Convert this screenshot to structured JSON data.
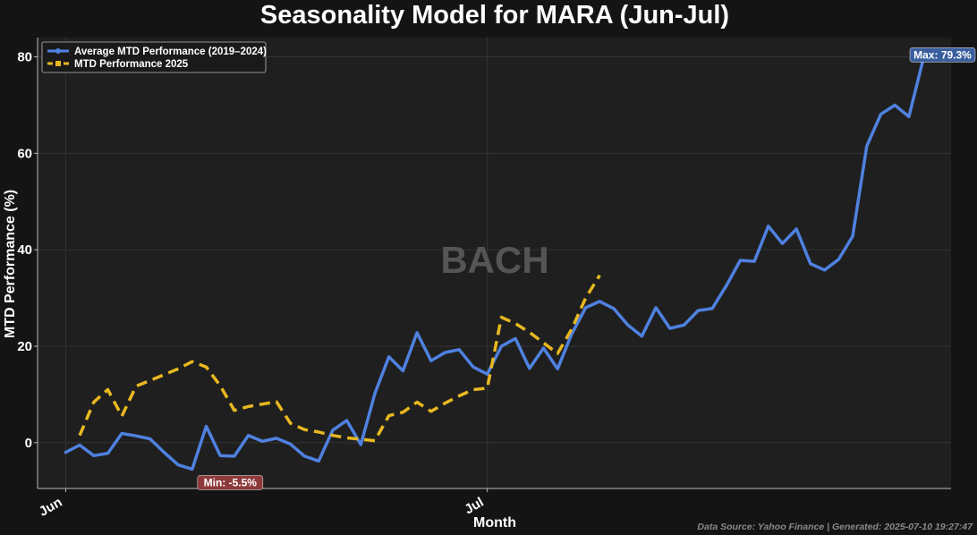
{
  "chart_data": {
    "type": "line",
    "title": "Seasonality Model for MARA (Jun-Jul)",
    "xlabel": "Month",
    "ylabel": "MTD Performance (%)",
    "x_tick_labels": [
      {
        "label": "Jun",
        "index": 0
      },
      {
        "label": "Jul",
        "index": 30
      }
    ],
    "x_range": [
      0,
      63
    ],
    "y_ticks": [
      0,
      20,
      40,
      60,
      80
    ],
    "ylim": [
      -9.5,
      84
    ],
    "grid": true,
    "legend_position": "top-left",
    "watermark": "BACH",
    "footer": "Data Source: Yahoo Finance | Generated: 2025-07-10 19:27:47",
    "series": [
      {
        "name": "Average MTD Performance (2019–2024)",
        "color": "#4f81e0",
        "style": "solid",
        "marker": "circle",
        "x": [
          0,
          1,
          2,
          3,
          4,
          5,
          6,
          7,
          8,
          9,
          10,
          11,
          12,
          13,
          14,
          15,
          16,
          17,
          18,
          19,
          20,
          21,
          22,
          23,
          24,
          25,
          26,
          27,
          28,
          29,
          30,
          31,
          32,
          33,
          34,
          35,
          36,
          37,
          38,
          39,
          40,
          41,
          42,
          43,
          44,
          45,
          46,
          47,
          48,
          49,
          50,
          51,
          52,
          53,
          54,
          55,
          56,
          57,
          58,
          59,
          60,
          61
        ],
        "values": [
          -2.0,
          -0.5,
          -2.7,
          -2.2,
          1.9,
          1.4,
          0.8,
          -2.0,
          -4.6,
          -5.5,
          3.4,
          -2.7,
          -2.8,
          1.5,
          0.3,
          0.9,
          -0.3,
          -2.8,
          -3.8,
          2.6,
          4.6,
          -0.4,
          10.2,
          17.8,
          14.9,
          22.8,
          17.0,
          18.7,
          19.3,
          15.7,
          14.2,
          20.0,
          21.6,
          15.4,
          19.6,
          15.3,
          22.5,
          28.0,
          29.3,
          27.8,
          24.4,
          22.1,
          28.0,
          23.7,
          24.4,
          27.4,
          27.8,
          32.5,
          37.8,
          37.6,
          44.9,
          41.3,
          44.3,
          37.1,
          35.8,
          38.0,
          42.8,
          61.5,
          68.1,
          70.0,
          67.6,
          79.3
        ]
      },
      {
        "name": "MTD Performance 2025",
        "color": "#e8b820",
        "style": "dashed",
        "marker": "square",
        "x": [
          1,
          2,
          3,
          4,
          5,
          6,
          7,
          8,
          9,
          10,
          11,
          12,
          13,
          14,
          15,
          16,
          17,
          18,
          19,
          20,
          21,
          22,
          23,
          24,
          25,
          26,
          27,
          28,
          29,
          30,
          31,
          32,
          33,
          34,
          35,
          36,
          37,
          38,
          39
        ],
        "values": [
          1.5,
          8.4,
          11.0,
          5.5,
          11.7,
          12.9,
          14.1,
          15.3,
          16.8,
          15.7,
          11.8,
          6.7,
          7.5,
          8.0,
          8.5,
          4.0,
          2.7,
          2.2,
          1.5,
          1.0,
          0.7,
          0.4,
          5.6,
          6.3,
          8.4,
          6.5,
          8.2,
          9.7,
          11.0,
          11.3,
          26.0,
          24.7,
          22.9,
          20.7,
          18.5,
          23.5,
          30.0,
          34.7,
          null
        ]
      }
    ],
    "annotations": [
      {
        "text": "Max: 79.3%",
        "x": 61,
        "y": 79.3,
        "color": "#3a5f9e"
      },
      {
        "text": "Min: -5.5%",
        "x": 9,
        "y": -5.5,
        "color": "#8e3a3a"
      }
    ]
  }
}
